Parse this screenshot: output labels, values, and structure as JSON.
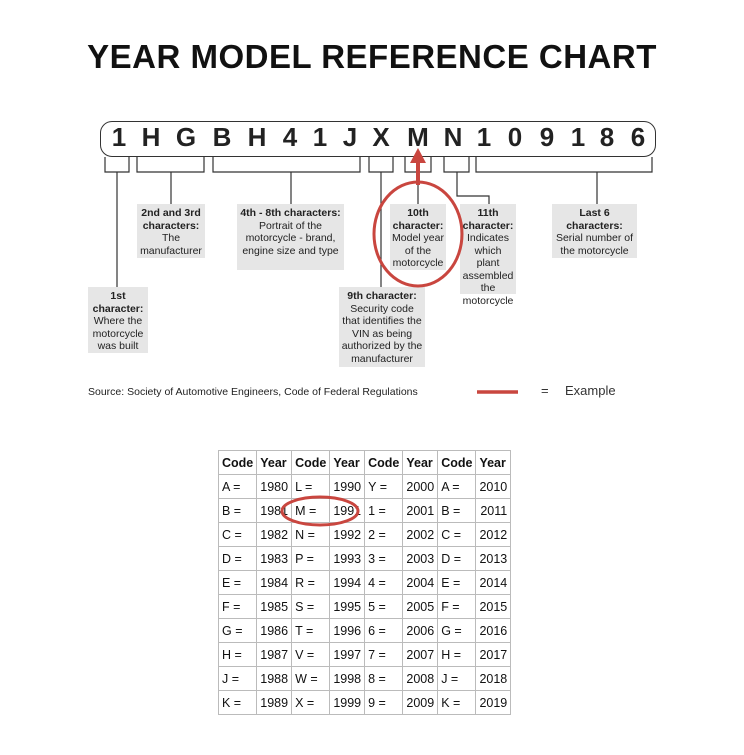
{
  "title": "YEAR MODEL REFERENCE CHART",
  "vin": [
    "1",
    "H",
    "G",
    "B",
    "H",
    "4",
    "1",
    "J",
    "X",
    "M",
    "N",
    "1",
    "0",
    "9",
    "1",
    "8",
    "6"
  ],
  "labels": {
    "first": {
      "head": "1st character:",
      "body": "Where the motorcycle was built"
    },
    "second_third": {
      "head": "2nd and 3rd characters:",
      "body": "The manufacturer"
    },
    "fourth_eighth": {
      "head": "4th - 8th characters:",
      "body": "Portrait of the motorcycle - brand, engine size and type"
    },
    "ninth": {
      "head": "9th character:",
      "body": "Security code that identifies the VIN as being authorized by the manufacturer"
    },
    "tenth": {
      "head": "10th character:",
      "body": "Model year of the motorcycle"
    },
    "eleventh": {
      "head": "11th character:",
      "body": "Indicates which plant assembled the motorcycle"
    },
    "last6": {
      "head": "Last 6 characters:",
      "body": "Serial number of the motorcycle"
    }
  },
  "source": "Source:  Society of Automotive Engineers, Code of Federal Regulations",
  "legend": {
    "eq": "=",
    "label": "Example"
  },
  "highlight_color": "#c9463f",
  "table": {
    "headers": [
      "Code",
      "Year",
      "Code",
      "Year",
      "Code",
      "Year",
      "Code",
      "Year"
    ],
    "rows": [
      [
        "A =",
        "1980",
        "L =",
        "1990",
        "Y =",
        "2000",
        "A =",
        "2010"
      ],
      [
        "B =",
        "1981",
        "M =",
        "1991",
        "1 =",
        "2001",
        "B =",
        "2011"
      ],
      [
        "C =",
        "1982",
        "N =",
        "1992",
        "2 =",
        "2002",
        "C =",
        "2012"
      ],
      [
        "D =",
        "1983",
        "P =",
        "1993",
        "3 =",
        "2003",
        "D =",
        "2013"
      ],
      [
        "E =",
        "1984",
        "R =",
        "1994",
        "4 =",
        "2004",
        "E =",
        "2014"
      ],
      [
        "F =",
        "1985",
        "S =",
        "1995",
        "5 =",
        "2005",
        "F =",
        "2015"
      ],
      [
        "G =",
        "1986",
        "T =",
        "1996",
        "6 =",
        "2006",
        "G =",
        "2016"
      ],
      [
        "H =",
        "1987",
        "V =",
        "1997",
        "7 =",
        "2007",
        "H =",
        "2017"
      ],
      [
        "J =",
        "1988",
        "W =",
        "1998",
        "8 =",
        "2008",
        "J =",
        "2018"
      ],
      [
        "K =",
        "1989",
        "X =",
        "1999",
        "9 =",
        "2009",
        "K =",
        "2019"
      ]
    ]
  }
}
